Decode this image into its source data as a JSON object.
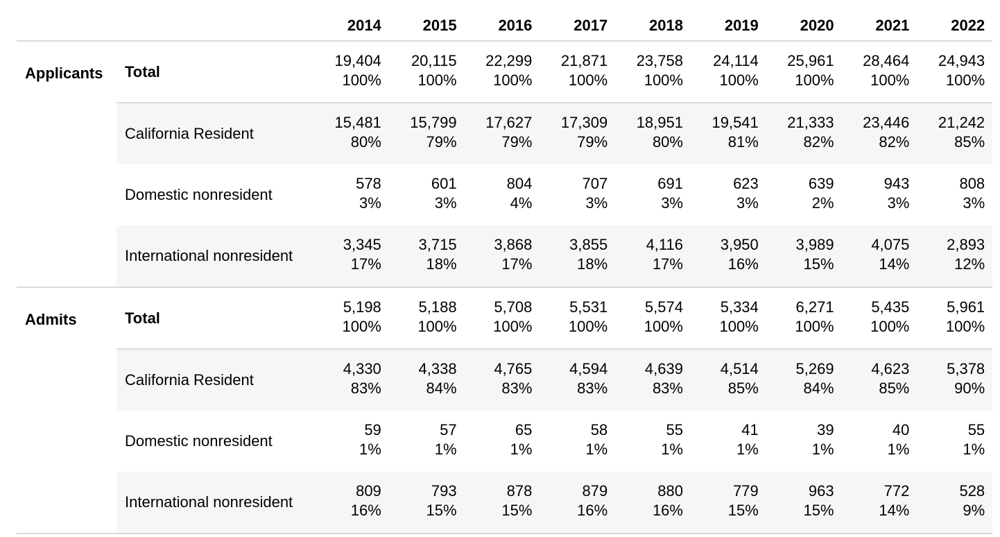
{
  "years": [
    "2014",
    "2015",
    "2016",
    "2017",
    "2018",
    "2019",
    "2020",
    "2021",
    "2022"
  ],
  "groups": [
    {
      "label": "Applicants",
      "rows": [
        {
          "category": "Total",
          "counts": [
            "19,404",
            "20,115",
            "22,299",
            "21,871",
            "23,758",
            "24,114",
            "25,961",
            "28,464",
            "24,943"
          ],
          "percents": [
            "100%",
            "100%",
            "100%",
            "100%",
            "100%",
            "100%",
            "100%",
            "100%",
            "100%"
          ]
        },
        {
          "category": "California Resident",
          "counts": [
            "15,481",
            "15,799",
            "17,627",
            "17,309",
            "18,951",
            "19,541",
            "21,333",
            "23,446",
            "21,242"
          ],
          "percents": [
            "80%",
            "79%",
            "79%",
            "79%",
            "80%",
            "81%",
            "82%",
            "82%",
            "85%"
          ]
        },
        {
          "category": "Domestic nonresident",
          "counts": [
            "578",
            "601",
            "804",
            "707",
            "691",
            "623",
            "639",
            "943",
            "808"
          ],
          "percents": [
            "3%",
            "3%",
            "4%",
            "3%",
            "3%",
            "3%",
            "2%",
            "3%",
            "3%"
          ]
        },
        {
          "category": "International nonresident",
          "counts": [
            "3,345",
            "3,715",
            "3,868",
            "3,855",
            "4,116",
            "3,950",
            "3,989",
            "4,075",
            "2,893"
          ],
          "percents": [
            "17%",
            "18%",
            "17%",
            "18%",
            "17%",
            "16%",
            "15%",
            "14%",
            "12%"
          ]
        }
      ]
    },
    {
      "label": "Admits",
      "rows": [
        {
          "category": "Total",
          "counts": [
            "5,198",
            "5,188",
            "5,708",
            "5,531",
            "5,574",
            "5,334",
            "6,271",
            "5,435",
            "5,961"
          ],
          "percents": [
            "100%",
            "100%",
            "100%",
            "100%",
            "100%",
            "100%",
            "100%",
            "100%",
            "100%"
          ]
        },
        {
          "category": "California Resident",
          "counts": [
            "4,330",
            "4,338",
            "4,765",
            "4,594",
            "4,639",
            "4,514",
            "5,269",
            "4,623",
            "5,378"
          ],
          "percents": [
            "83%",
            "84%",
            "83%",
            "83%",
            "83%",
            "85%",
            "84%",
            "85%",
            "90%"
          ]
        },
        {
          "category": "Domestic nonresident",
          "counts": [
            "59",
            "57",
            "65",
            "58",
            "55",
            "41",
            "39",
            "40",
            "55"
          ],
          "percents": [
            "1%",
            "1%",
            "1%",
            "1%",
            "1%",
            "1%",
            "1%",
            "1%",
            "1%"
          ]
        },
        {
          "category": "International nonresident",
          "counts": [
            "809",
            "793",
            "878",
            "879",
            "880",
            "779",
            "963",
            "772",
            "528"
          ],
          "percents": [
            "16%",
            "15%",
            "15%",
            "16%",
            "16%",
            "15%",
            "15%",
            "14%",
            "9%"
          ]
        }
      ]
    }
  ],
  "colors": {
    "shade": "#f6f6f6",
    "rule": "#dadada",
    "text": "#000000"
  }
}
